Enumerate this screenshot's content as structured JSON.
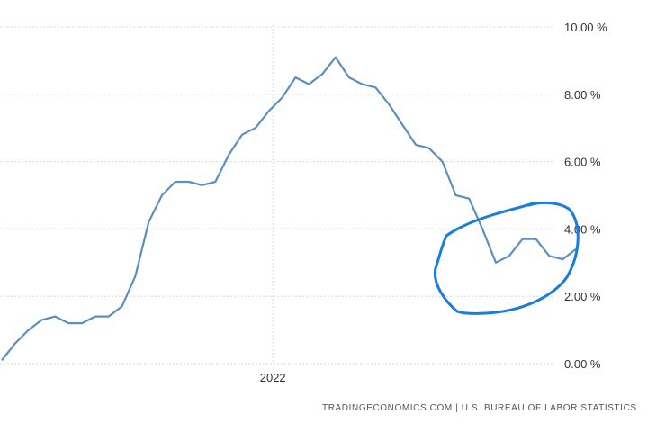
{
  "chart_data": {
    "type": "line",
    "y_unit": "%",
    "ylim": [
      0,
      10
    ],
    "y_ticks": [
      "0.00 %",
      "2.00 %",
      "4.00 %",
      "6.00 %",
      "8.00 %",
      "10.00 %"
    ],
    "y_tick_values": [
      0,
      2,
      4,
      6,
      8,
      10
    ],
    "x_tick_labels": [
      "2022"
    ],
    "grid": true,
    "line_color": "#5b8fc1",
    "annotation_color": "#1a7be0",
    "series": [
      {
        "values": [
          0.1,
          0.6,
          1.0,
          1.3,
          1.4,
          1.2,
          1.2,
          1.4,
          1.4,
          1.7,
          2.6,
          4.2,
          5.0,
          5.4,
          5.4,
          5.3,
          5.4,
          6.2,
          6.8,
          7.0,
          7.5,
          7.9,
          8.5,
          8.3,
          8.6,
          9.1,
          8.5,
          8.3,
          8.2,
          7.7,
          7.1,
          6.5,
          6.4,
          6.0,
          5.0,
          4.9,
          4.0,
          3.0,
          3.2,
          3.7,
          3.7,
          3.2,
          3.1,
          3.4
        ]
      }
    ]
  },
  "source_text": "TRADINGECONOMICS.COM  |  U.S. BUREAU OF LABOR STATISTICS"
}
